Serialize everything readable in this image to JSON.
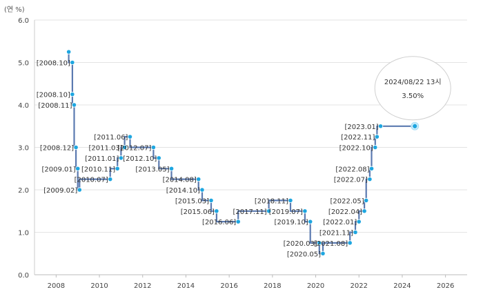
{
  "chart_data": {
    "type": "line",
    "step": true,
    "y_unit_label": "(연 %)",
    "ylim": [
      0,
      6
    ],
    "y_ticks": [
      "0.0",
      "1.0",
      "2.0",
      "3.0",
      "4.0",
      "5.0",
      "6.0"
    ],
    "xlim": [
      2007,
      2027
    ],
    "x_ticks": [
      "2008",
      "2010",
      "2012",
      "2014",
      "2016",
      "2018",
      "2020",
      "2022",
      "2024",
      "2026"
    ],
    "grid": true,
    "colors": {
      "line": "#5b7ab0",
      "marker": "#1ea6e0",
      "grid": "#e3e3e3",
      "tooltip_border": "#cfcfcf"
    },
    "points": [
      {
        "x": "2008.08",
        "y": 5.25,
        "label": ""
      },
      {
        "x": "2008.10",
        "y": 5.0,
        "label": "[2008.10]"
      },
      {
        "x": "2008.10",
        "y": 4.25,
        "label": "[2008.10]"
      },
      {
        "x": "2008.11",
        "y": 4.0,
        "label": "[2008.11]"
      },
      {
        "x": "2008.12",
        "y": 3.0,
        "label": "[2008.12]"
      },
      {
        "x": "2009.01",
        "y": 2.5,
        "label": "[2009.01]"
      },
      {
        "x": "2009.02",
        "y": 2.0,
        "label": "[2009.02]"
      },
      {
        "x": "2010.07",
        "y": 2.25,
        "label": "[2010.07]"
      },
      {
        "x": "2010.11",
        "y": 2.5,
        "label": "[2010.11]"
      },
      {
        "x": "2011.01",
        "y": 2.75,
        "label": "[2011.01]"
      },
      {
        "x": "2011.03",
        "y": 3.0,
        "label": "[2011.03]"
      },
      {
        "x": "2011.06",
        "y": 3.25,
        "label": "[2011.06]"
      },
      {
        "x": "2012.07",
        "y": 3.0,
        "label": "[2012.07]"
      },
      {
        "x": "2012.10",
        "y": 2.75,
        "label": "[2012.10]"
      },
      {
        "x": "2013.05",
        "y": 2.5,
        "label": "[2013.05]"
      },
      {
        "x": "2014.08",
        "y": 2.25,
        "label": "[2014.08]"
      },
      {
        "x": "2014.10",
        "y": 2.0,
        "label": "[2014.10]"
      },
      {
        "x": "2015.03",
        "y": 1.75,
        "label": "[2015.03]"
      },
      {
        "x": "2015.06",
        "y": 1.5,
        "label": "[2015.06]"
      },
      {
        "x": "2016.06",
        "y": 1.25,
        "label": "[2016.06]"
      },
      {
        "x": "2017.11",
        "y": 1.5,
        "label": "[2017.11]"
      },
      {
        "x": "2018.11",
        "y": 1.75,
        "label": "[2018.11]"
      },
      {
        "x": "2019.07",
        "y": 1.5,
        "label": "[2019.07]"
      },
      {
        "x": "2019.10",
        "y": 1.25,
        "label": "[2019.10]"
      },
      {
        "x": "2020.03",
        "y": 0.75,
        "label": "[2020.03]"
      },
      {
        "x": "2020.05",
        "y": 0.5,
        "label": "[2020.05]"
      },
      {
        "x": "2021.08",
        "y": 0.75,
        "label": "[2021.08]"
      },
      {
        "x": "2021.11",
        "y": 1.0,
        "label": "[2021.11]"
      },
      {
        "x": "2022.01",
        "y": 1.25,
        "label": "[2022.01]"
      },
      {
        "x": "2022.04",
        "y": 1.5,
        "label": "[2022.04]"
      },
      {
        "x": "2022.05",
        "y": 1.75,
        "label": "[2022.05]"
      },
      {
        "x": "2022.07",
        "y": 2.25,
        "label": "[2022.07]"
      },
      {
        "x": "2022.08",
        "y": 2.5,
        "label": "[2022.08]"
      },
      {
        "x": "2022.10",
        "y": 3.0,
        "label": "[2022.10]"
      },
      {
        "x": "2022.11",
        "y": 3.25,
        "label": "[2022.11]"
      },
      {
        "x": "2023.01",
        "y": 3.5,
        "label": "[2023.01]"
      },
      {
        "x": "2024.08",
        "y": 3.5,
        "label": ""
      }
    ],
    "tooltip": {
      "date": "2024/08/22 13시",
      "value": "3.50%"
    }
  }
}
